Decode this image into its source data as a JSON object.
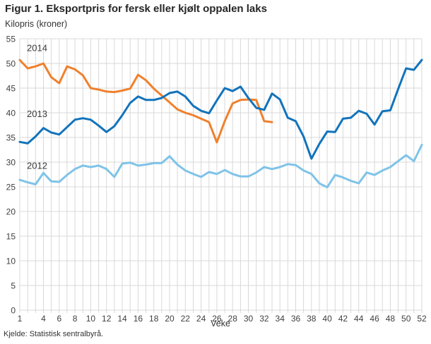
{
  "header": {
    "title": "Figur 1. Eksportpris for fersk eller kjølt oppalen laks",
    "subtitle": "Kilopris (kroner)"
  },
  "footer": {
    "source": "Kjelde: Statistisk sentralbyrå."
  },
  "chart_data": {
    "type": "line",
    "title": "Figur 1. Eksportpris for fersk eller kjølt oppalen laks",
    "ylabel": "Kilopris (kroner)",
    "xlabel": "Veke",
    "weeks": 52,
    "ylim": [
      0,
      55
    ],
    "ytick_step": 5,
    "grid": true,
    "grid_color": "#d8d8d8",
    "x_tick_weeks": [
      1,
      4,
      6,
      8,
      10,
      12,
      14,
      16,
      18,
      20,
      22,
      24,
      26,
      28,
      30,
      32,
      34,
      36,
      38,
      40,
      42,
      44,
      46,
      48,
      50,
      52
    ],
    "legend_position": "inline-labels",
    "series": [
      {
        "name": "2014",
        "color": "#f0802c",
        "label_pos": {
          "week": 1.9,
          "value": 53.1
        },
        "values": [
          50.7,
          49.0,
          49.4,
          50.0,
          47.2,
          46.0,
          49.4,
          48.8,
          47.6,
          45.0,
          44.7,
          44.3,
          44.2,
          44.5,
          44.9,
          47.7,
          46.6,
          44.9,
          43.5,
          42.1,
          40.7,
          40.0,
          39.5,
          38.8,
          38.1,
          34.0,
          38.3,
          41.9,
          42.6,
          42.7,
          42.6,
          38.3,
          38.1
        ]
      },
      {
        "name": "2013",
        "color": "#1173bc",
        "label_pos": {
          "week": 1.9,
          "value": 39.7
        },
        "values": [
          34.1,
          33.8,
          35.2,
          36.9,
          36.0,
          35.6,
          37.1,
          38.6,
          38.9,
          38.6,
          37.4,
          36.1,
          37.3,
          39.5,
          42.0,
          43.3,
          42.6,
          42.6,
          43.0,
          44.0,
          44.3,
          43.3,
          41.4,
          40.4,
          39.9,
          42.5,
          45.0,
          44.4,
          45.3,
          43.0,
          41.0,
          40.6,
          43.9,
          42.7,
          39.0,
          38.3,
          35.2,
          30.7,
          33.7,
          36.2,
          36.1,
          38.8,
          39.0,
          40.4,
          39.8,
          37.6,
          40.3,
          40.5,
          44.8,
          49.0,
          48.7,
          50.7
        ]
      },
      {
        "name": "2012",
        "color": "#7fc3e8",
        "label_pos": {
          "week": 1.9,
          "value": 29.2
        },
        "values": [
          26.4,
          25.9,
          25.5,
          27.8,
          26.1,
          26.0,
          27.4,
          28.6,
          29.3,
          29.0,
          29.3,
          28.6,
          27.0,
          29.7,
          29.9,
          29.3,
          29.5,
          29.8,
          29.8,
          31.2,
          29.5,
          28.3,
          27.6,
          27.0,
          28.0,
          27.6,
          28.4,
          27.6,
          27.1,
          27.1,
          27.9,
          29.0,
          28.6,
          29.0,
          29.6,
          29.4,
          28.3,
          27.6,
          25.7,
          24.9,
          27.4,
          26.9,
          26.2,
          25.7,
          27.9,
          27.4,
          28.3,
          29.0,
          30.2,
          31.4,
          30.2,
          33.5
        ]
      }
    ]
  }
}
